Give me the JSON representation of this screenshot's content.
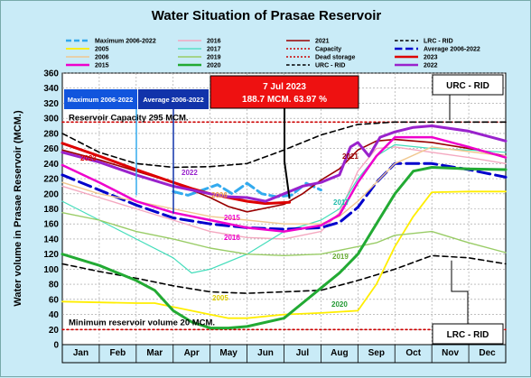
{
  "chart_data": {
    "type": "line",
    "title": "Water Situation of Prasae Reservoir",
    "ylabel": "Water volume in Prasae Reservoir (MCM.)",
    "xlabel": "",
    "ylim": [
      0,
      360
    ],
    "yticks": [
      0,
      20,
      40,
      60,
      80,
      100,
      120,
      140,
      160,
      180,
      200,
      220,
      240,
      260,
      280,
      300,
      320,
      340,
      360
    ],
    "categories": [
      "Jan",
      "Feb",
      "Mar",
      "Apr",
      "May",
      "Jun",
      "Jul",
      "Aug",
      "Sep",
      "Oct",
      "Nov",
      "Dec"
    ],
    "grid": true,
    "legend": "top",
    "capacity": 295,
    "dead_storage": 20,
    "series": [
      {
        "name": "Maximum 2006-2022",
        "color": "#33aaee",
        "dash": "10 5",
        "width": 3,
        "x": [
          3.0,
          3.4,
          3.8,
          4.2,
          4.6,
          5.0,
          5.4,
          5.8,
          6.2,
          6.6,
          7.0
        ],
        "values": [
          203,
          198,
          205,
          212,
          200,
          214,
          200,
          196,
          198,
          214,
          205
        ]
      },
      {
        "name": "2016",
        "color": "#f4a8c0",
        "width": 1.4,
        "x": [
          0,
          1,
          2,
          3,
          4,
          5,
          6,
          7,
          7.5,
          8,
          8.5,
          9,
          10,
          11,
          12
        ],
        "values": [
          210,
          195,
          180,
          165,
          150,
          142,
          140,
          150,
          175,
          230,
          260,
          262,
          255,
          248,
          240
        ]
      },
      {
        "name": "2021",
        "color": "#990000",
        "width": 1.6,
        "x": [
          0,
          1,
          2,
          3,
          3.5,
          4,
          4.5,
          5,
          6,
          6.5,
          7,
          7.5,
          8,
          8.5,
          9,
          10,
          11,
          12
        ],
        "values": [
          258,
          245,
          230,
          215,
          205,
          195,
          183,
          176,
          186,
          200,
          218,
          233,
          258,
          270,
          272,
          268,
          260,
          250
        ]
      },
      {
        "name": "LRC - RID",
        "color": "#000000",
        "dash": "6 4",
        "width": 1.6,
        "x": [
          0,
          1,
          2,
          3,
          4,
          5,
          6,
          7,
          8,
          9,
          10,
          11,
          12
        ],
        "values": [
          107,
          97,
          88,
          78,
          70,
          68,
          70,
          72,
          85,
          100,
          118,
          115,
          107
        ]
      },
      {
        "name": "2005",
        "color": "#ffee00",
        "width": 1.8,
        "x": [
          0,
          1,
          2,
          2.5,
          3,
          4,
          4.5,
          5,
          6,
          7,
          8,
          8.5,
          9,
          9.5,
          10,
          11,
          12
        ],
        "values": [
          57,
          56,
          55,
          55,
          50,
          40,
          35,
          35,
          40,
          42,
          45,
          80,
          130,
          170,
          202,
          203,
          203
        ]
      },
      {
        "name": "2017",
        "color": "#44ddbb",
        "width": 1.2,
        "x": [
          0,
          1,
          2,
          3,
          3.5,
          4,
          5,
          6,
          7,
          7.5,
          8,
          8.5,
          9,
          10,
          11,
          12
        ],
        "values": [
          190,
          165,
          140,
          115,
          95,
          100,
          120,
          150,
          165,
          180,
          220,
          250,
          265,
          260,
          258,
          255
        ]
      },
      {
        "name": "Capacity",
        "color": "#cc0000",
        "dash": "2 3",
        "width": 1.6,
        "x": [
          0,
          12
        ],
        "values": [
          295,
          295
        ]
      },
      {
        "name": "Average 2006-2022",
        "color": "#0000cc",
        "dash": "14 6",
        "width": 3,
        "x": [
          0,
          1,
          2,
          3,
          4,
          5,
          6,
          7,
          7.5,
          8,
          8.5,
          9,
          10,
          11,
          12
        ],
        "values": [
          225,
          205,
          185,
          168,
          160,
          155,
          153,
          155,
          162,
          182,
          215,
          240,
          240,
          232,
          222
        ]
      },
      {
        "name": "2006",
        "color": "#f0c890",
        "width": 1.4,
        "x": [
          0,
          1,
          2,
          3,
          4,
          5,
          6,
          7,
          7.5,
          8,
          9,
          10,
          11,
          12
        ],
        "values": [
          215,
          200,
          190,
          180,
          170,
          165,
          160,
          160,
          170,
          190,
          240,
          262,
          256,
          250
        ]
      },
      {
        "name": "2019",
        "color": "#99cc66",
        "width": 1.4,
        "x": [
          0,
          1,
          2,
          3,
          4,
          5,
          6,
          7,
          8,
          8.5,
          9,
          10,
          11,
          12
        ],
        "values": [
          175,
          165,
          150,
          140,
          128,
          120,
          118,
          120,
          130,
          135,
          145,
          150,
          135,
          122
        ]
      },
      {
        "name": "Dead storage",
        "color": "#cc0000",
        "dash": "2 3",
        "width": 1.6,
        "x": [
          0,
          12
        ],
        "values": [
          20,
          20
        ]
      },
      {
        "name": "2023",
        "color": "#dd0000",
        "width": 3,
        "x": [
          0,
          1,
          2,
          3,
          3.5,
          4,
          4.5,
          5,
          5.5,
          6.15
        ],
        "values": [
          267,
          250,
          232,
          215,
          207,
          200,
          195,
          190,
          187,
          188.7
        ]
      },
      {
        "name": "2015",
        "color": "#ee00cc",
        "width": 2.5,
        "x": [
          0,
          1,
          2,
          3,
          4,
          5,
          6,
          7,
          7.5,
          8,
          8.5,
          9,
          10,
          11,
          12
        ],
        "values": [
          238,
          215,
          190,
          175,
          165,
          155,
          150,
          158,
          172,
          215,
          250,
          275,
          275,
          262,
          248
        ]
      },
      {
        "name": "2020",
        "color": "#22aa33",
        "width": 3,
        "x": [
          0,
          1,
          2,
          2.5,
          3,
          3.5,
          4,
          4.5,
          5,
          6,
          6.5,
          7,
          7.5,
          8,
          8.5,
          9,
          9.5,
          10,
          11,
          12
        ],
        "values": [
          120,
          105,
          85,
          72,
          45,
          30,
          22,
          22,
          24,
          35,
          55,
          75,
          95,
          120,
          160,
          200,
          230,
          235,
          233,
          232
        ]
      },
      {
        "name": "URC - RID",
        "color": "#000000",
        "dash": "6 4",
        "width": 1.6,
        "x": [
          0,
          1,
          2,
          3,
          4,
          5,
          6,
          7,
          8,
          9,
          10,
          11,
          12
        ],
        "values": [
          280,
          255,
          240,
          235,
          236,
          240,
          258,
          278,
          292,
          295,
          295,
          295,
          295
        ]
      },
      {
        "name": "2022",
        "color": "#9922cc",
        "width": 3,
        "x": [
          0,
          1,
          2,
          3,
          4,
          4.5,
          5,
          5.5,
          6,
          6.5,
          7,
          7.5,
          7.8,
          8,
          8.3,
          8.6,
          9,
          9.5,
          10,
          11,
          12
        ],
        "values": [
          255,
          242,
          225,
          210,
          200,
          196,
          195,
          190,
          200,
          210,
          215,
          225,
          262,
          268,
          250,
          275,
          282,
          288,
          290,
          283,
          270
        ]
      }
    ],
    "series_labels": [
      {
        "text": "2023",
        "color": "#dd0000"
      },
      {
        "text": "2022",
        "color": "#9922cc"
      },
      {
        "text": "2006",
        "color": "#ee9944"
      },
      {
        "text": "2015",
        "color": "#ee00cc"
      },
      {
        "text": "2016",
        "color": "#ee00cc"
      },
      {
        "text": "2017",
        "color": "#22bbaa"
      },
      {
        "text": "2019",
        "color": "#66aa33"
      },
      {
        "text": "2021",
        "color": "#990000"
      },
      {
        "text": "2005",
        "color": "#ddcc00"
      },
      {
        "text": "2020",
        "color": "#229933"
      }
    ],
    "annotations": {
      "current_date": "7 Jul 2023",
      "current_value": "188.7 MCM. 63.97 %",
      "capacity_label": "Reservoir Capacity 295 MCM.",
      "min_volume_label": "Minimum reservoir volume 20 MCM.",
      "max_box": "Maximum 2006-2022",
      "avg_box": "Average 2006-2022",
      "urc_box": "URC - RID",
      "lrc_box": "LRC - RID"
    }
  }
}
